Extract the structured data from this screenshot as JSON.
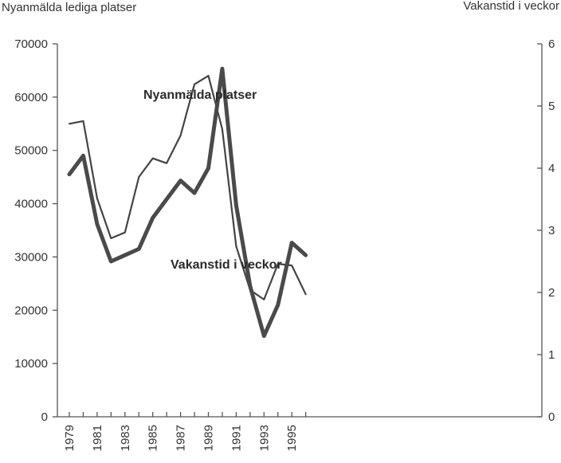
{
  "chart_data": {
    "type": "line",
    "x": [
      1979,
      1980,
      1981,
      1982,
      1983,
      1984,
      1985,
      1986,
      1987,
      1988,
      1989,
      1990,
      1991,
      1992,
      1993,
      1994,
      1995,
      1996
    ],
    "x_tick_labels": [
      "1979",
      "1981",
      "1983",
      "1985",
      "1987",
      "1989",
      "1991",
      "1993",
      "1995"
    ],
    "y_left_label": "Nyanmälda lediga platser",
    "y_right_label": "Vakanstid i veckor",
    "y_left_ticks": [
      "0",
      "10000",
      "20000",
      "30000",
      "40000",
      "50000",
      "60000",
      "70000"
    ],
    "y_right_ticks": [
      "0",
      "1",
      "2",
      "3",
      "4",
      "5",
      "6"
    ],
    "y_left_lim": [
      0,
      70000
    ],
    "y_right_lim": [
      0,
      6
    ],
    "grid": false,
    "series": [
      {
        "name": "Nyanmälda platser",
        "axis": "left",
        "values": [
          55000,
          55500,
          41000,
          33500,
          34600,
          45000,
          48500,
          47600,
          52800,
          62400,
          64000,
          54000,
          32000,
          23800,
          22000,
          28700,
          28400,
          23000
        ]
      },
      {
        "name": "Vakanstid i veckor",
        "axis": "right",
        "values": [
          3.9,
          4.2,
          3.1,
          2.5,
          2.6,
          2.7,
          3.2,
          3.5,
          3.8,
          3.6,
          4.0,
          5.6,
          3.4,
          2.1,
          1.3,
          1.8,
          2.8,
          2.6
        ]
      }
    ]
  }
}
